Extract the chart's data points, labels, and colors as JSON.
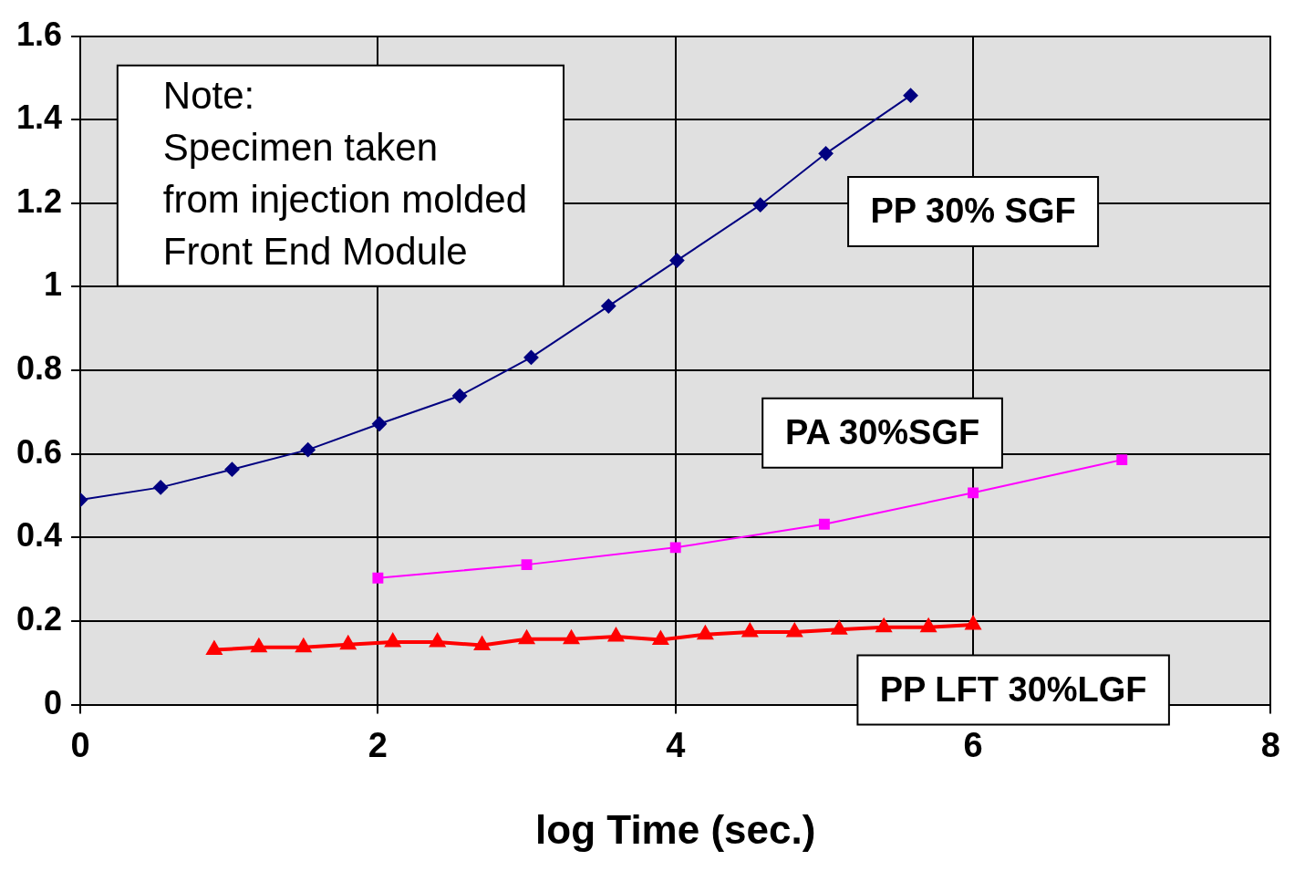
{
  "chart_data": {
    "type": "line",
    "xlabel": "log Time (sec.)",
    "xlim": [
      0,
      8
    ],
    "xticks": [
      0,
      2,
      4,
      6,
      8
    ],
    "ylim": [
      0,
      1.6
    ],
    "yticks": [
      0,
      0.2,
      0.4,
      0.6,
      0.8,
      1,
      1.2,
      1.4,
      1.6
    ],
    "grid": true,
    "legend": false,
    "line_style": "solid",
    "annotations": [
      "Note:\nSpecimen taken\nfrom injection molded\nFront End Module"
    ],
    "series": [
      {
        "name": "PP 30% SGF",
        "color": "#000080",
        "marker": "diamond",
        "x": [
          0,
          0.54,
          1.02,
          1.53,
          2.01,
          2.55,
          3.03,
          3.55,
          4.01,
          4.57,
          5.01,
          5.58
        ],
        "values": [
          0.49,
          0.52,
          0.563,
          0.61,
          0.672,
          0.739,
          0.831,
          0.954,
          1.063,
          1.196,
          1.319,
          1.458
        ]
      },
      {
        "name": "PA 30%SGF",
        "color": "#ff00ff",
        "marker": "square",
        "x": [
          2,
          3,
          4,
          5,
          6,
          7
        ],
        "values": [
          0.303,
          0.335,
          0.376,
          0.432,
          0.507,
          0.586
        ]
      },
      {
        "name": "PP LFT 30%LGF",
        "color": "#ff0000",
        "marker": "triangle",
        "x": [
          0.9,
          1.2,
          1.5,
          1.8,
          2.1,
          2.4,
          2.7,
          3.0,
          3.3,
          3.6,
          3.9,
          4.2,
          4.5,
          4.8,
          5.1,
          5.4,
          5.7,
          6.0
        ],
        "values": [
          0.131,
          0.137,
          0.137,
          0.144,
          0.15,
          0.15,
          0.142,
          0.157,
          0.157,
          0.163,
          0.155,
          0.168,
          0.174,
          0.174,
          0.18,
          0.185,
          0.185,
          0.191
        ]
      }
    ]
  }
}
